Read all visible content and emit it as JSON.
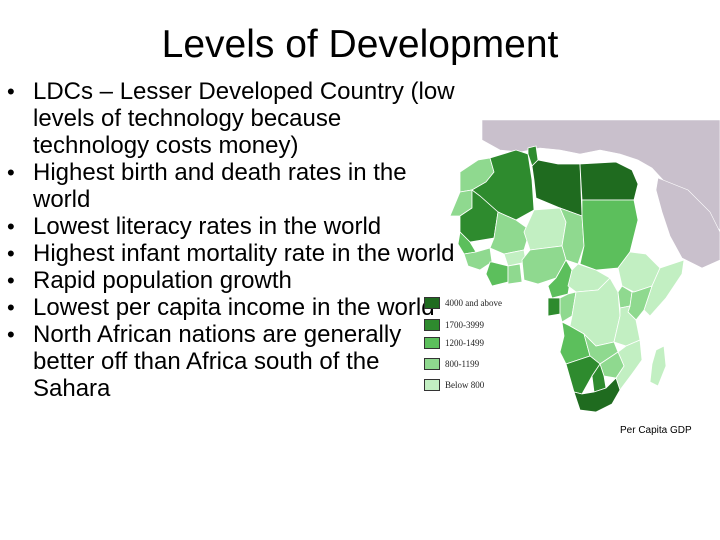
{
  "slide": {
    "title": "Levels of Development",
    "bullets": [
      "LDCs – Lesser Developed Country (low levels of technology because technology costs money)",
      "Highest birth and death rates in the world",
      "Lowest literacy rates in the world",
      "Highest infant mortality rate in the world",
      "Rapid population growth",
      "Lowest per capita income in the world",
      "North African nations are generally better off than Africa south of the Sahara"
    ],
    "bullet_symbol": "•"
  },
  "map": {
    "caption": "Per Capita GDP",
    "legend": [
      {
        "label": "4000 and above",
        "color": "#1f6b1f"
      },
      {
        "label": "1700-3999",
        "color": "#2e8b2e"
      },
      {
        "label": "1200-1499",
        "color": "#5cbf5c"
      },
      {
        "label": "800-1199",
        "color": "#8fd98f"
      },
      {
        "label": "Below 800",
        "color": "#c2efc2"
      }
    ],
    "colors": {
      "ocean": "#ffffff",
      "other_land": "#c9c0cc",
      "border": "#ffffff"
    }
  }
}
